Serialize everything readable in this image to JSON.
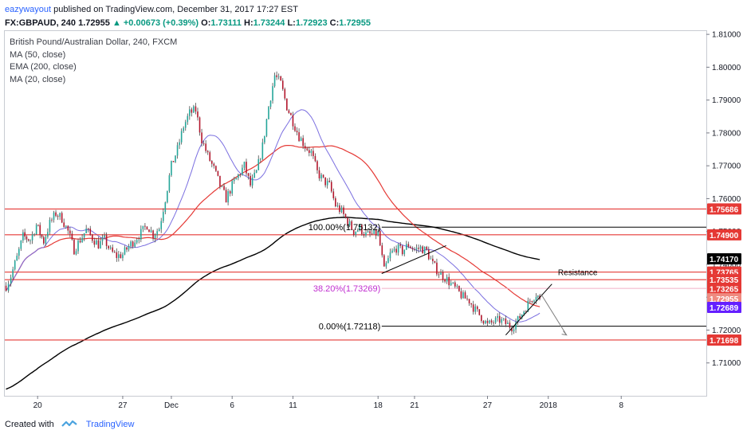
{
  "header": {
    "author": "eazywayout",
    "published_text": " published on TradingView.com, December 31, 2017 17:27 EST",
    "symbol": "FX:GBPAUD, 240",
    "last": "1.72955",
    "change": "▲ +0.00673 (+0.39%)",
    "open_label": "O:",
    "open": "1.73111",
    "high_label": "H:",
    "high": "1.73244",
    "low_label": "L:",
    "low": "1.72923",
    "close_label": "C:",
    "close": "1.72955"
  },
  "legend": {
    "title": "British Pound/Australian Dollar, 240, FXCM",
    "ma50": "MA (50, close)",
    "ema200": "EMA (200, close)",
    "ma20": "MA (20, close)"
  },
  "footer": {
    "created_with": "Created with",
    "brand": "TradingView"
  },
  "chart_data": {
    "type": "candlestick",
    "symbol": "GBPAUD",
    "timeframe": "240",
    "ylim": [
      1.7,
      1.811
    ],
    "y_ticks": [
      "1.81000",
      "1.80000",
      "1.79000",
      "1.78000",
      "1.77000",
      "1.76000",
      "1.75000",
      "1.74000",
      "1.73000",
      "1.72000",
      "1.71000"
    ],
    "x_ticks": [
      {
        "label": "20",
        "day": 20
      },
      {
        "label": "27",
        "day": 27
      },
      {
        "label": "Dec",
        "day": 31
      },
      {
        "label": "6",
        "day": 36
      },
      {
        "label": "11",
        "day": 41
      },
      {
        "label": "18",
        "day": 48
      },
      {
        "label": "21",
        "day": 51
      },
      {
        "label": "27",
        "day": 57
      },
      {
        "label": "2018",
        "day": 62
      },
      {
        "label": "8",
        "day": 68
      }
    ],
    "xlim_days": [
      17.3,
      75
    ],
    "close_series_keypoints": [
      [
        17.4,
        1.7335
      ],
      [
        17.8,
        1.7365
      ],
      [
        18.3,
        1.742
      ],
      [
        18.8,
        1.7485
      ],
      [
        19.4,
        1.7475
      ],
      [
        19.9,
        1.752
      ],
      [
        20.5,
        1.747
      ],
      [
        21.0,
        1.7525
      ],
      [
        21.5,
        1.7555
      ],
      [
        22.0,
        1.754
      ],
      [
        22.5,
        1.75
      ],
      [
        23.0,
        1.7445
      ],
      [
        23.5,
        1.7475
      ],
      [
        24.0,
        1.7505
      ],
      [
        24.5,
        1.748
      ],
      [
        25.0,
        1.746
      ],
      [
        25.5,
        1.7475
      ],
      [
        26.0,
        1.744
      ],
      [
        26.5,
        1.7425
      ],
      [
        27.0,
        1.743
      ],
      [
        27.5,
        1.7455
      ],
      [
        28.0,
        1.7475
      ],
      [
        28.5,
        1.7495
      ],
      [
        29.0,
        1.752
      ],
      [
        29.5,
        1.749
      ],
      [
        30.0,
        1.751
      ],
      [
        30.5,
        1.76
      ],
      [
        31.0,
        1.77
      ],
      [
        31.5,
        1.775
      ],
      [
        32.0,
        1.782
      ],
      [
        32.5,
        1.786
      ],
      [
        33.0,
        1.787
      ],
      [
        33.5,
        1.778
      ],
      [
        34.0,
        1.773
      ],
      [
        34.5,
        1.769
      ],
      [
        35.0,
        1.764
      ],
      [
        35.5,
        1.76
      ],
      [
        36.0,
        1.764
      ],
      [
        36.5,
        1.767
      ],
      [
        37.0,
        1.77
      ],
      [
        37.5,
        1.764
      ],
      [
        38.0,
        1.768
      ],
      [
        38.5,
        1.776
      ],
      [
        39.0,
        1.788
      ],
      [
        39.5,
        1.7975
      ],
      [
        40.0,
        1.795
      ],
      [
        40.5,
        1.788
      ],
      [
        41.0,
        1.7835
      ],
      [
        41.5,
        1.779
      ],
      [
        42.0,
        1.776
      ],
      [
        42.5,
        1.774
      ],
      [
        43.0,
        1.768
      ],
      [
        43.5,
        1.7655
      ],
      [
        44.0,
        1.764
      ],
      [
        44.5,
        1.758
      ],
      [
        45.0,
        1.756
      ],
      [
        45.5,
        1.753
      ],
      [
        46.0,
        1.75
      ],
      [
        46.5,
        1.751
      ],
      [
        47.0,
        1.749
      ],
      [
        47.5,
        1.749
      ],
      [
        48.0,
        1.7495
      ],
      [
        48.5,
        1.738
      ],
      [
        49.0,
        1.743
      ],
      [
        49.5,
        1.745
      ],
      [
        50.0,
        1.744
      ],
      [
        50.5,
        1.746
      ],
      [
        51.0,
        1.7445
      ],
      [
        51.5,
        1.745
      ],
      [
        52.0,
        1.744
      ],
      [
        52.5,
        1.74
      ],
      [
        53.0,
        1.7375
      ],
      [
        53.5,
        1.736
      ],
      [
        54.0,
        1.734
      ],
      [
        54.5,
        1.732
      ],
      [
        55.0,
        1.73
      ],
      [
        55.5,
        1.729
      ],
      [
        56.0,
        1.726
      ],
      [
        56.5,
        1.724
      ],
      [
        57.0,
        1.7215
      ],
      [
        57.5,
        1.7225
      ],
      [
        58.0,
        1.723
      ],
      [
        58.5,
        1.722
      ],
      [
        59.0,
        1.721
      ],
      [
        59.5,
        1.723
      ],
      [
        60.0,
        1.726
      ],
      [
        60.5,
        1.729
      ],
      [
        61.0,
        1.731
      ],
      [
        61.3,
        1.72955
      ]
    ],
    "horizontal_lines": [
      {
        "price": 1.75686,
        "color": "#e53935"
      },
      {
        "price": 1.749,
        "color": "#e53935"
      },
      {
        "price": 1.73765,
        "color": "#e53935"
      },
      {
        "price": 1.73535,
        "color": "#e53935"
      },
      {
        "price": 1.71698,
        "color": "#e53935"
      },
      {
        "price": 1.75132,
        "color": "#000000"
      },
      {
        "price": 1.72118,
        "color": "#000000"
      }
    ],
    "price_labels": [
      {
        "text": "1.75686",
        "price": 1.75686,
        "bg": "#e53935",
        "fg": "#ffffff"
      },
      {
        "text": "1.74900",
        "price": 1.749,
        "bg": "#e53935",
        "fg": "#ffffff"
      },
      {
        "text": "1.74170",
        "price": 1.7417,
        "bg": "#000000",
        "fg": "#ffffff"
      },
      {
        "text": "1.73765",
        "price": 1.73765,
        "bg": "#e53935",
        "fg": "#ffffff"
      },
      {
        "text": "1.73535",
        "price": 1.73535,
        "bg": "#e53935",
        "fg": "#ffffff"
      },
      {
        "text": "1.73265",
        "price": 1.73265,
        "bg": "#e53935",
        "fg": "#ffffff"
      },
      {
        "text": "1.72955",
        "price": 1.72955,
        "bg": "#ef8a80",
        "fg": "#ffffff"
      },
      {
        "text": "1.72689",
        "price": 1.72689,
        "bg": "#651fff",
        "fg": "#ffffff"
      },
      {
        "text": "1.71698",
        "price": 1.71698,
        "bg": "#e53935",
        "fg": "#ffffff"
      }
    ],
    "fib_labels": {
      "fib100": "100.00%(1.75132)",
      "fib382": "38.20%(1.73269)",
      "fib0": "0.00%(1.72118)"
    },
    "annotation_resistance": "Resistance",
    "colors": {
      "up": "#26a69a",
      "down": "#b2162c",
      "ma20": "#7b6fe0",
      "ma50": "#e53935",
      "ema200": "#000000",
      "fib382": "#c12fd0"
    }
  }
}
